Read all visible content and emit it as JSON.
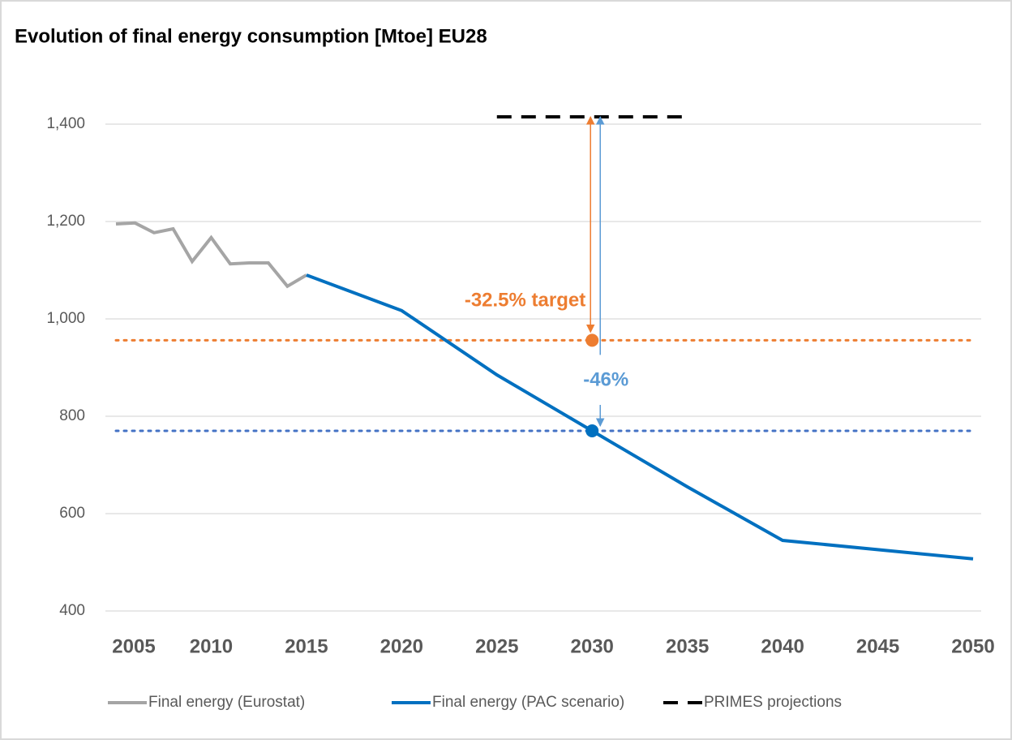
{
  "chart_data": {
    "type": "line",
    "title": "Evolution of final energy consumption [Mtoe] EU28",
    "xlim": [
      2005,
      2050
    ],
    "xticks": [
      2005,
      2010,
      2015,
      2020,
      2025,
      2030,
      2035,
      2040,
      2045,
      2050
    ],
    "ylim": [
      400,
      1500
    ],
    "yticks": [
      {
        "value": 400,
        "label": "400"
      },
      {
        "value": 600,
        "label": "600"
      },
      {
        "value": 800,
        "label": "800"
      },
      {
        "value": 1000,
        "label": "1,000"
      },
      {
        "value": 1200,
        "label": "1,200"
      },
      {
        "value": 1400,
        "label": "1,400"
      }
    ],
    "grid": true,
    "legend": "bottom",
    "series": [
      {
        "name": "Final energy (Eurostat)",
        "color": "#a5a5a5",
        "dash": "solid",
        "x": [
          2005,
          2006,
          2007,
          2008,
          2009,
          2010,
          2011,
          2012,
          2013,
          2014,
          2015
        ],
        "values": [
          1195,
          1197,
          1177,
          1185,
          1118,
          1167,
          1113,
          1115,
          1115,
          1067,
          1090
        ]
      },
      {
        "name": "Final energy (PAC scenario)",
        "color": "#0070c0",
        "dash": "solid",
        "x": [
          2015,
          2020,
          2025,
          2030,
          2035,
          2040,
          2050
        ],
        "values": [
          1090,
          1017,
          885,
          770,
          655,
          545,
          507
        ]
      },
      {
        "name": "PRIMES projections",
        "color": "#000000",
        "dash": "dashed",
        "x": [
          2025,
          2035
        ],
        "values": [
          1415,
          1415
        ]
      }
    ],
    "reference_lines": [
      {
        "color": "#ed7d31",
        "value": 956,
        "x": 2030,
        "annotation": "-32.5% target",
        "label_color": "#ed7d31"
      },
      {
        "color": "#4472c4",
        "value": 770,
        "x": 2030,
        "annotation": "-46%",
        "label_color": "#5b9bd5"
      }
    ]
  }
}
